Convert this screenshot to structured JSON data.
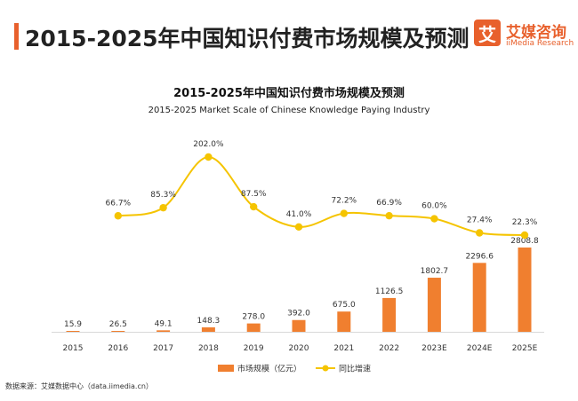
{
  "header": {
    "title": "2015-2025年中国知识付费市场规模及预测",
    "logo": {
      "mark": "艾",
      "name_cn": "艾媒咨询",
      "name_en": "iiMedia Research"
    }
  },
  "source": "数据来源：艾媒数据中心（data.iimedia.cn）",
  "colors": {
    "accent": "#e8602c",
    "bar": "#f07f2f",
    "line": "#f5c400"
  },
  "chart_data": {
    "type": "bar+line",
    "title": "2015-2025年中国知识付费市场规模及预测",
    "subtitle": "2015-2025 Market Scale of Chinese Knowledge Paying Industry",
    "categories": [
      "2015",
      "2016",
      "2017",
      "2018",
      "2019",
      "2020",
      "2021",
      "2022",
      "2023E",
      "2024E",
      "2025E"
    ],
    "series": [
      {
        "name": "市场规模（亿元）",
        "type": "bar",
        "values": [
          15.9,
          26.5,
          49.1,
          148.3,
          278.0,
          392.0,
          675.0,
          1126.5,
          1802.7,
          2296.6,
          2808.8
        ],
        "labels": [
          "15.9",
          "26.5",
          "49.1",
          "148.3",
          "278.0",
          "392.0",
          "675.0",
          "1126.5",
          "1802.7",
          "2296.6",
          "2808.8"
        ]
      },
      {
        "name": "同比增速",
        "type": "line",
        "values": [
          null,
          66.7,
          85.3,
          202.0,
          87.5,
          41.0,
          72.2,
          66.9,
          60.0,
          27.4,
          22.3
        ],
        "labels": [
          "",
          "66.7%",
          "85.3%",
          "202.0%",
          "87.5%",
          "41.0%",
          "72.2%",
          "66.9%",
          "60.0%",
          "27.4%",
          "22.3%"
        ]
      }
    ],
    "legend_position": "bottom-center",
    "grid": false
  }
}
